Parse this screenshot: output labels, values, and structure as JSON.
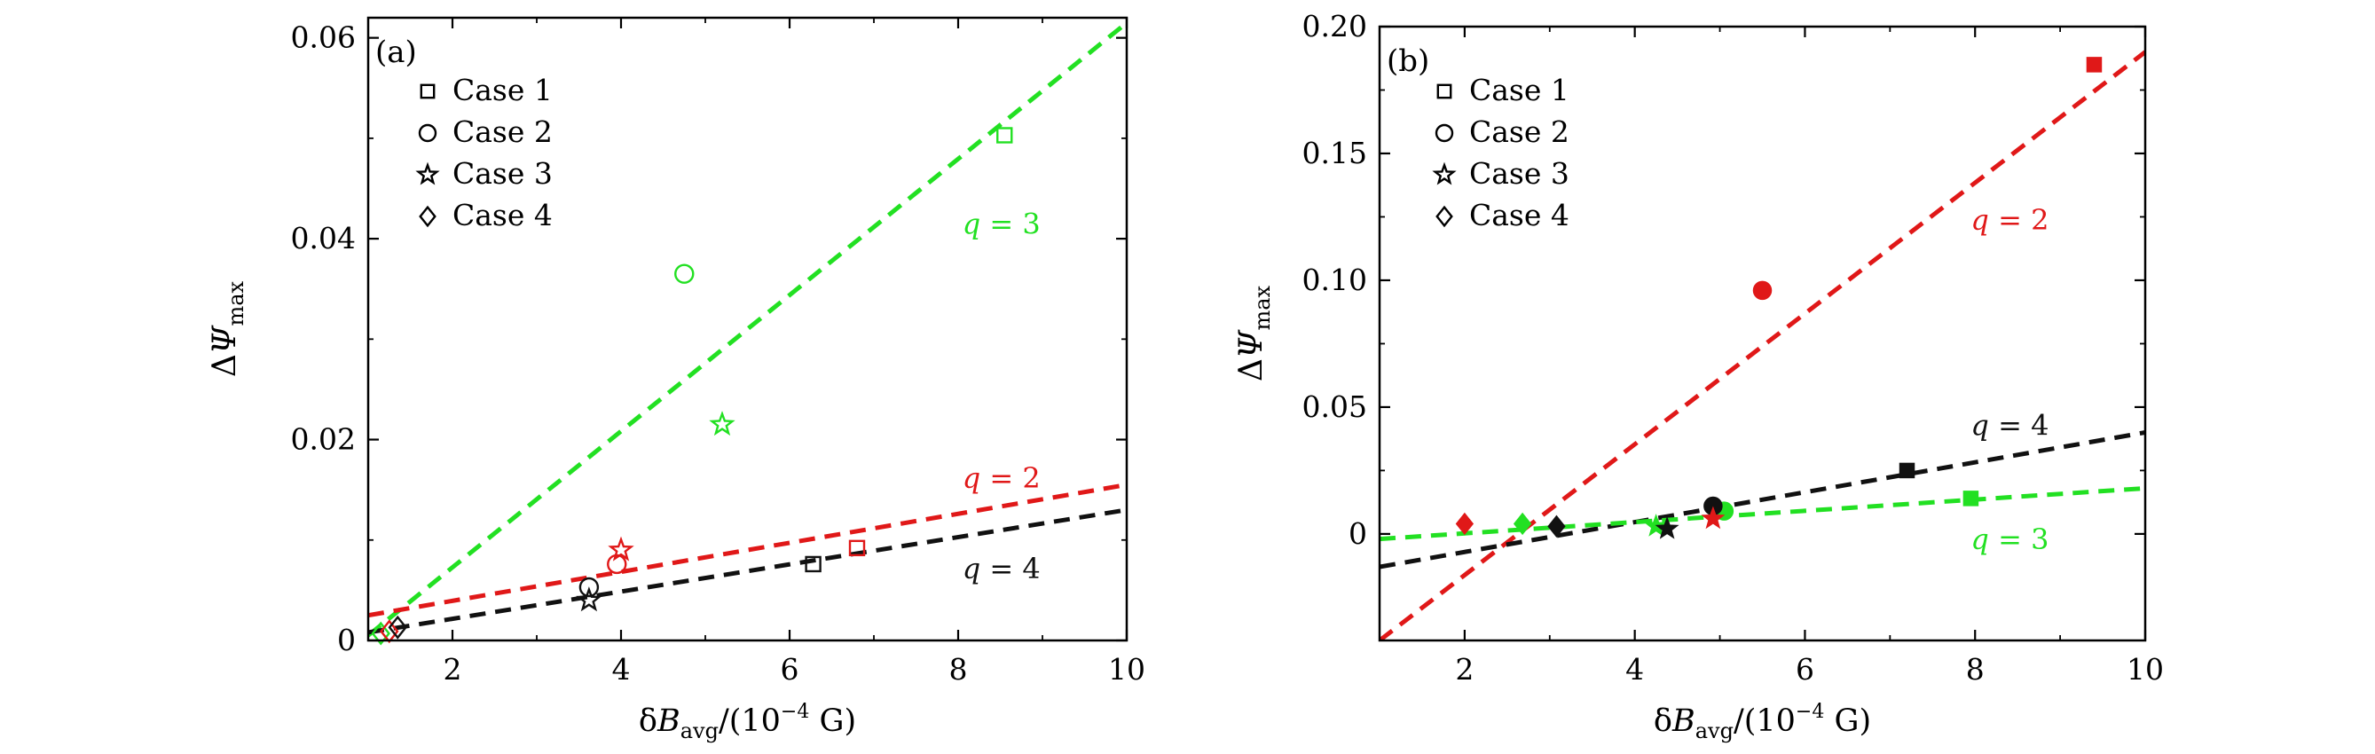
{
  "colors": {
    "green": "#22e022",
    "red": "#e01818",
    "black": "#111111",
    "axis": "#000000"
  },
  "legend_entries": [
    {
      "label": "Case 1",
      "marker": "square"
    },
    {
      "label": "Case 2",
      "marker": "circle"
    },
    {
      "label": "Case 3",
      "marker": "star"
    },
    {
      "label": "Case 4",
      "marker": "diamond"
    }
  ],
  "chart_data": [
    {
      "id": "a",
      "type": "scatter",
      "panel_label": "(a)",
      "xlabel": "δB_avg/(10^-4 G)",
      "xlabel_parts": {
        "prefix": "δ",
        "var": "B",
        "sub": "avg",
        "mid": "/(10",
        "sup": "−4",
        "suffix": " G)"
      },
      "ylabel_parts": {
        "prefix": "Δ",
        "var": "Ψ",
        "sub": "max"
      },
      "xlim": [
        1,
        10
      ],
      "ylim": [
        0,
        0.062
      ],
      "xticks": [
        2,
        4,
        6,
        8,
        10
      ],
      "xtick_labels": [
        "2",
        "4",
        "6",
        "8",
        "10"
      ],
      "yticks": [
        0,
        0.02,
        0.04,
        0.06
      ],
      "ytick_labels": [
        "0",
        "0.02",
        "0.04",
        "0.06"
      ],
      "markers_filled": false,
      "fit_lines": [
        {
          "name": "q = 3",
          "q_label": "q",
          "q_value": "= 3",
          "color": "green",
          "x": [
            1,
            10
          ],
          "y": [
            0.0005,
            0.0615
          ],
          "label_at": [
            8.05,
            0.0405
          ]
        },
        {
          "name": "q = 2",
          "q_label": "q",
          "q_value": "= 2",
          "color": "red",
          "x": [
            1,
            10
          ],
          "y": [
            0.0025,
            0.0155
          ],
          "label_at": [
            8.05,
            0.0152
          ]
        },
        {
          "name": "q = 4",
          "q_label": "q",
          "q_value": "= 4",
          "color": "black",
          "x": [
            1,
            10
          ],
          "y": [
            0.0008,
            0.013
          ],
          "label_at": [
            8.05,
            0.0062
          ]
        }
      ],
      "points": [
        {
          "case": "Case 1",
          "marker": "square",
          "color": "green",
          "x": 8.55,
          "y": 0.0503
        },
        {
          "case": "Case 1",
          "marker": "square",
          "color": "red",
          "x": 6.8,
          "y": 0.0092
        },
        {
          "case": "Case 1",
          "marker": "square",
          "color": "black",
          "x": 6.28,
          "y": 0.0076
        },
        {
          "case": "Case 2",
          "marker": "circle",
          "color": "green",
          "x": 4.75,
          "y": 0.0365
        },
        {
          "case": "Case 2",
          "marker": "circle",
          "color": "red",
          "x": 3.95,
          "y": 0.0076
        },
        {
          "case": "Case 2",
          "marker": "circle",
          "color": "black",
          "x": 3.62,
          "y": 0.0053
        },
        {
          "case": "Case 3",
          "marker": "star",
          "color": "green",
          "x": 5.2,
          "y": 0.0215
        },
        {
          "case": "Case 3",
          "marker": "star",
          "color": "red",
          "x": 4.0,
          "y": 0.009
        },
        {
          "case": "Case 3",
          "marker": "star",
          "color": "black",
          "x": 3.62,
          "y": 0.004
        },
        {
          "case": "Case 4",
          "marker": "diamond",
          "color": "green",
          "x": 1.15,
          "y": 0.0007
        },
        {
          "case": "Case 4",
          "marker": "diamond",
          "color": "red",
          "x": 1.25,
          "y": 0.0009
        },
        {
          "case": "Case 4",
          "marker": "diamond",
          "color": "black",
          "x": 1.35,
          "y": 0.0013
        }
      ]
    },
    {
      "id": "b",
      "type": "scatter",
      "panel_label": "(b)",
      "xlabel": "δB_avg/(10^-4 G)",
      "xlabel_parts": {
        "prefix": "δ",
        "var": "B",
        "sub": "avg",
        "mid": "/(10",
        "sup": "−4",
        "suffix": " G)"
      },
      "ylabel_parts": {
        "prefix": "Δ",
        "var": "Ψ",
        "sub": "max"
      },
      "xlim": [
        1,
        10
      ],
      "ylim": [
        -0.042,
        0.2
      ],
      "xticks": [
        2,
        4,
        6,
        8,
        10
      ],
      "xtick_labels": [
        "2",
        "4",
        "6",
        "8",
        "10"
      ],
      "yticks": [
        0,
        0.05,
        0.1,
        0.15,
        0.2
      ],
      "ytick_labels": [
        "0",
        "0.05",
        "0.10",
        "0.15",
        "0.20"
      ],
      "markers_filled": true,
      "fit_lines": [
        {
          "name": "q = 2",
          "q_label": "q",
          "q_value": "= 2",
          "color": "red",
          "x": [
            1,
            10
          ],
          "y": [
            -0.042,
            0.19
          ],
          "label_at": [
            7.95,
            0.12
          ]
        },
        {
          "name": "q = 4",
          "q_label": "q",
          "q_value": "= 4",
          "color": "black",
          "x": [
            1,
            10
          ],
          "y": [
            -0.013,
            0.04
          ],
          "label_at": [
            7.95,
            0.039
          ]
        },
        {
          "name": "q = 3",
          "q_label": "q",
          "q_value": "= 3",
          "color": "green",
          "x": [
            1,
            10
          ],
          "y": [
            -0.002,
            0.018
          ],
          "label_at": [
            7.95,
            -0.006
          ]
        }
      ],
      "points": [
        {
          "case": "Case 1",
          "marker": "square",
          "color": "red",
          "x": 9.4,
          "y": 0.185
        },
        {
          "case": "Case 1",
          "marker": "square",
          "color": "black",
          "x": 7.2,
          "y": 0.025
        },
        {
          "case": "Case 1",
          "marker": "square",
          "color": "green",
          "x": 7.95,
          "y": 0.014
        },
        {
          "case": "Case 2",
          "marker": "circle",
          "color": "red",
          "x": 5.5,
          "y": 0.096
        },
        {
          "case": "Case 2",
          "marker": "circle",
          "color": "green",
          "x": 5.05,
          "y": 0.009
        },
        {
          "case": "Case 2",
          "marker": "circle",
          "color": "black",
          "x": 4.92,
          "y": 0.011
        },
        {
          "case": "Case 3",
          "marker": "star",
          "color": "red",
          "x": 4.92,
          "y": 0.006
        },
        {
          "case": "Case 3",
          "marker": "star",
          "color": "green",
          "x": 4.25,
          "y": 0.003
        },
        {
          "case": "Case 3",
          "marker": "star",
          "color": "black",
          "x": 4.38,
          "y": 0.002
        },
        {
          "case": "Case 4",
          "marker": "diamond",
          "color": "red",
          "x": 2.0,
          "y": 0.004
        },
        {
          "case": "Case 4",
          "marker": "diamond",
          "color": "green",
          "x": 2.68,
          "y": 0.004
        },
        {
          "case": "Case 4",
          "marker": "diamond",
          "color": "black",
          "x": 3.08,
          "y": 0.003
        }
      ]
    }
  ]
}
